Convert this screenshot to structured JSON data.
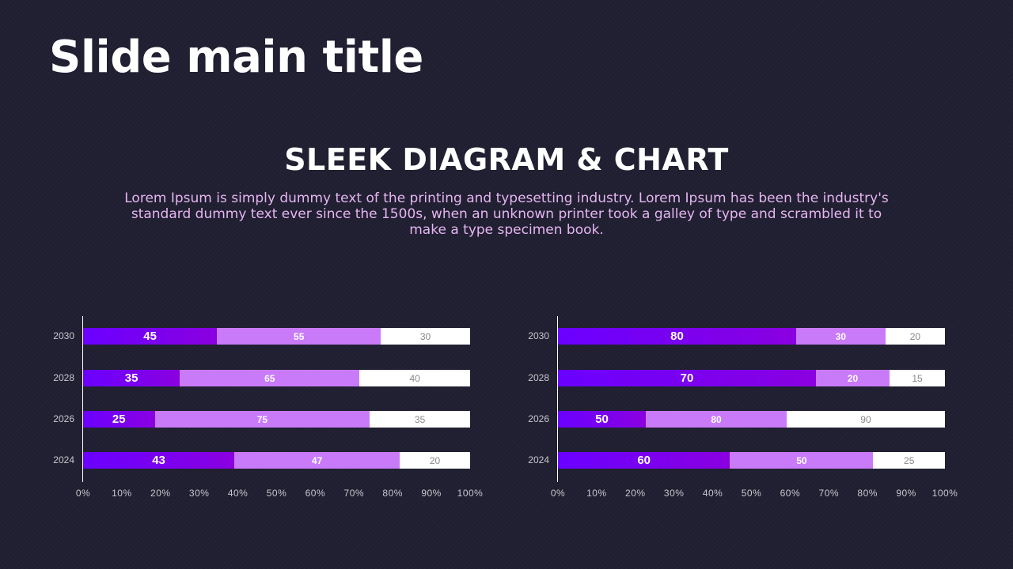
{
  "title": "Slide main title",
  "subtitle": "Sleek Diagram & Chart",
  "description": "Lorem Ipsum is simply dummy text of the printing and typesetting industry. Lorem Ipsum has been the industry's standard dummy text ever since the 1500s, when an unknown printer took a galley of type and scrambled it to make a type specimen book.",
  "colors": {
    "series1": "#6a00ff",
    "series2": "#c97af8",
    "series3": "#ffffff",
    "background": "#1f1f31"
  },
  "chart_data": [
    {
      "type": "bar",
      "orientation": "horizontal",
      "stacking": "percent",
      "categories": [
        "2030",
        "2028",
        "2026",
        "2024"
      ],
      "series": [
        {
          "values": [
            45,
            35,
            25,
            43
          ]
        },
        {
          "values": [
            55,
            65,
            75,
            47
          ]
        },
        {
          "values": [
            30,
            40,
            35,
            20
          ]
        }
      ],
      "xticks": [
        "0%",
        "10%",
        "20%",
        "30%",
        "40%",
        "50%",
        "60%",
        "70%",
        "80%",
        "90%",
        "100%"
      ],
      "xlim": [
        0,
        100
      ],
      "grid": false
    },
    {
      "type": "bar",
      "orientation": "horizontal",
      "stacking": "percent",
      "categories": [
        "2030",
        "2028",
        "2026",
        "2024"
      ],
      "series": [
        {
          "values": [
            80,
            70,
            50,
            60
          ]
        },
        {
          "values": [
            30,
            20,
            80,
            50
          ]
        },
        {
          "values": [
            20,
            15,
            90,
            25
          ]
        }
      ],
      "xticks": [
        "0%",
        "10%",
        "20%",
        "30%",
        "40%",
        "50%",
        "60%",
        "70%",
        "80%",
        "90%",
        "100%"
      ],
      "xlim": [
        0,
        100
      ],
      "grid": false
    }
  ]
}
